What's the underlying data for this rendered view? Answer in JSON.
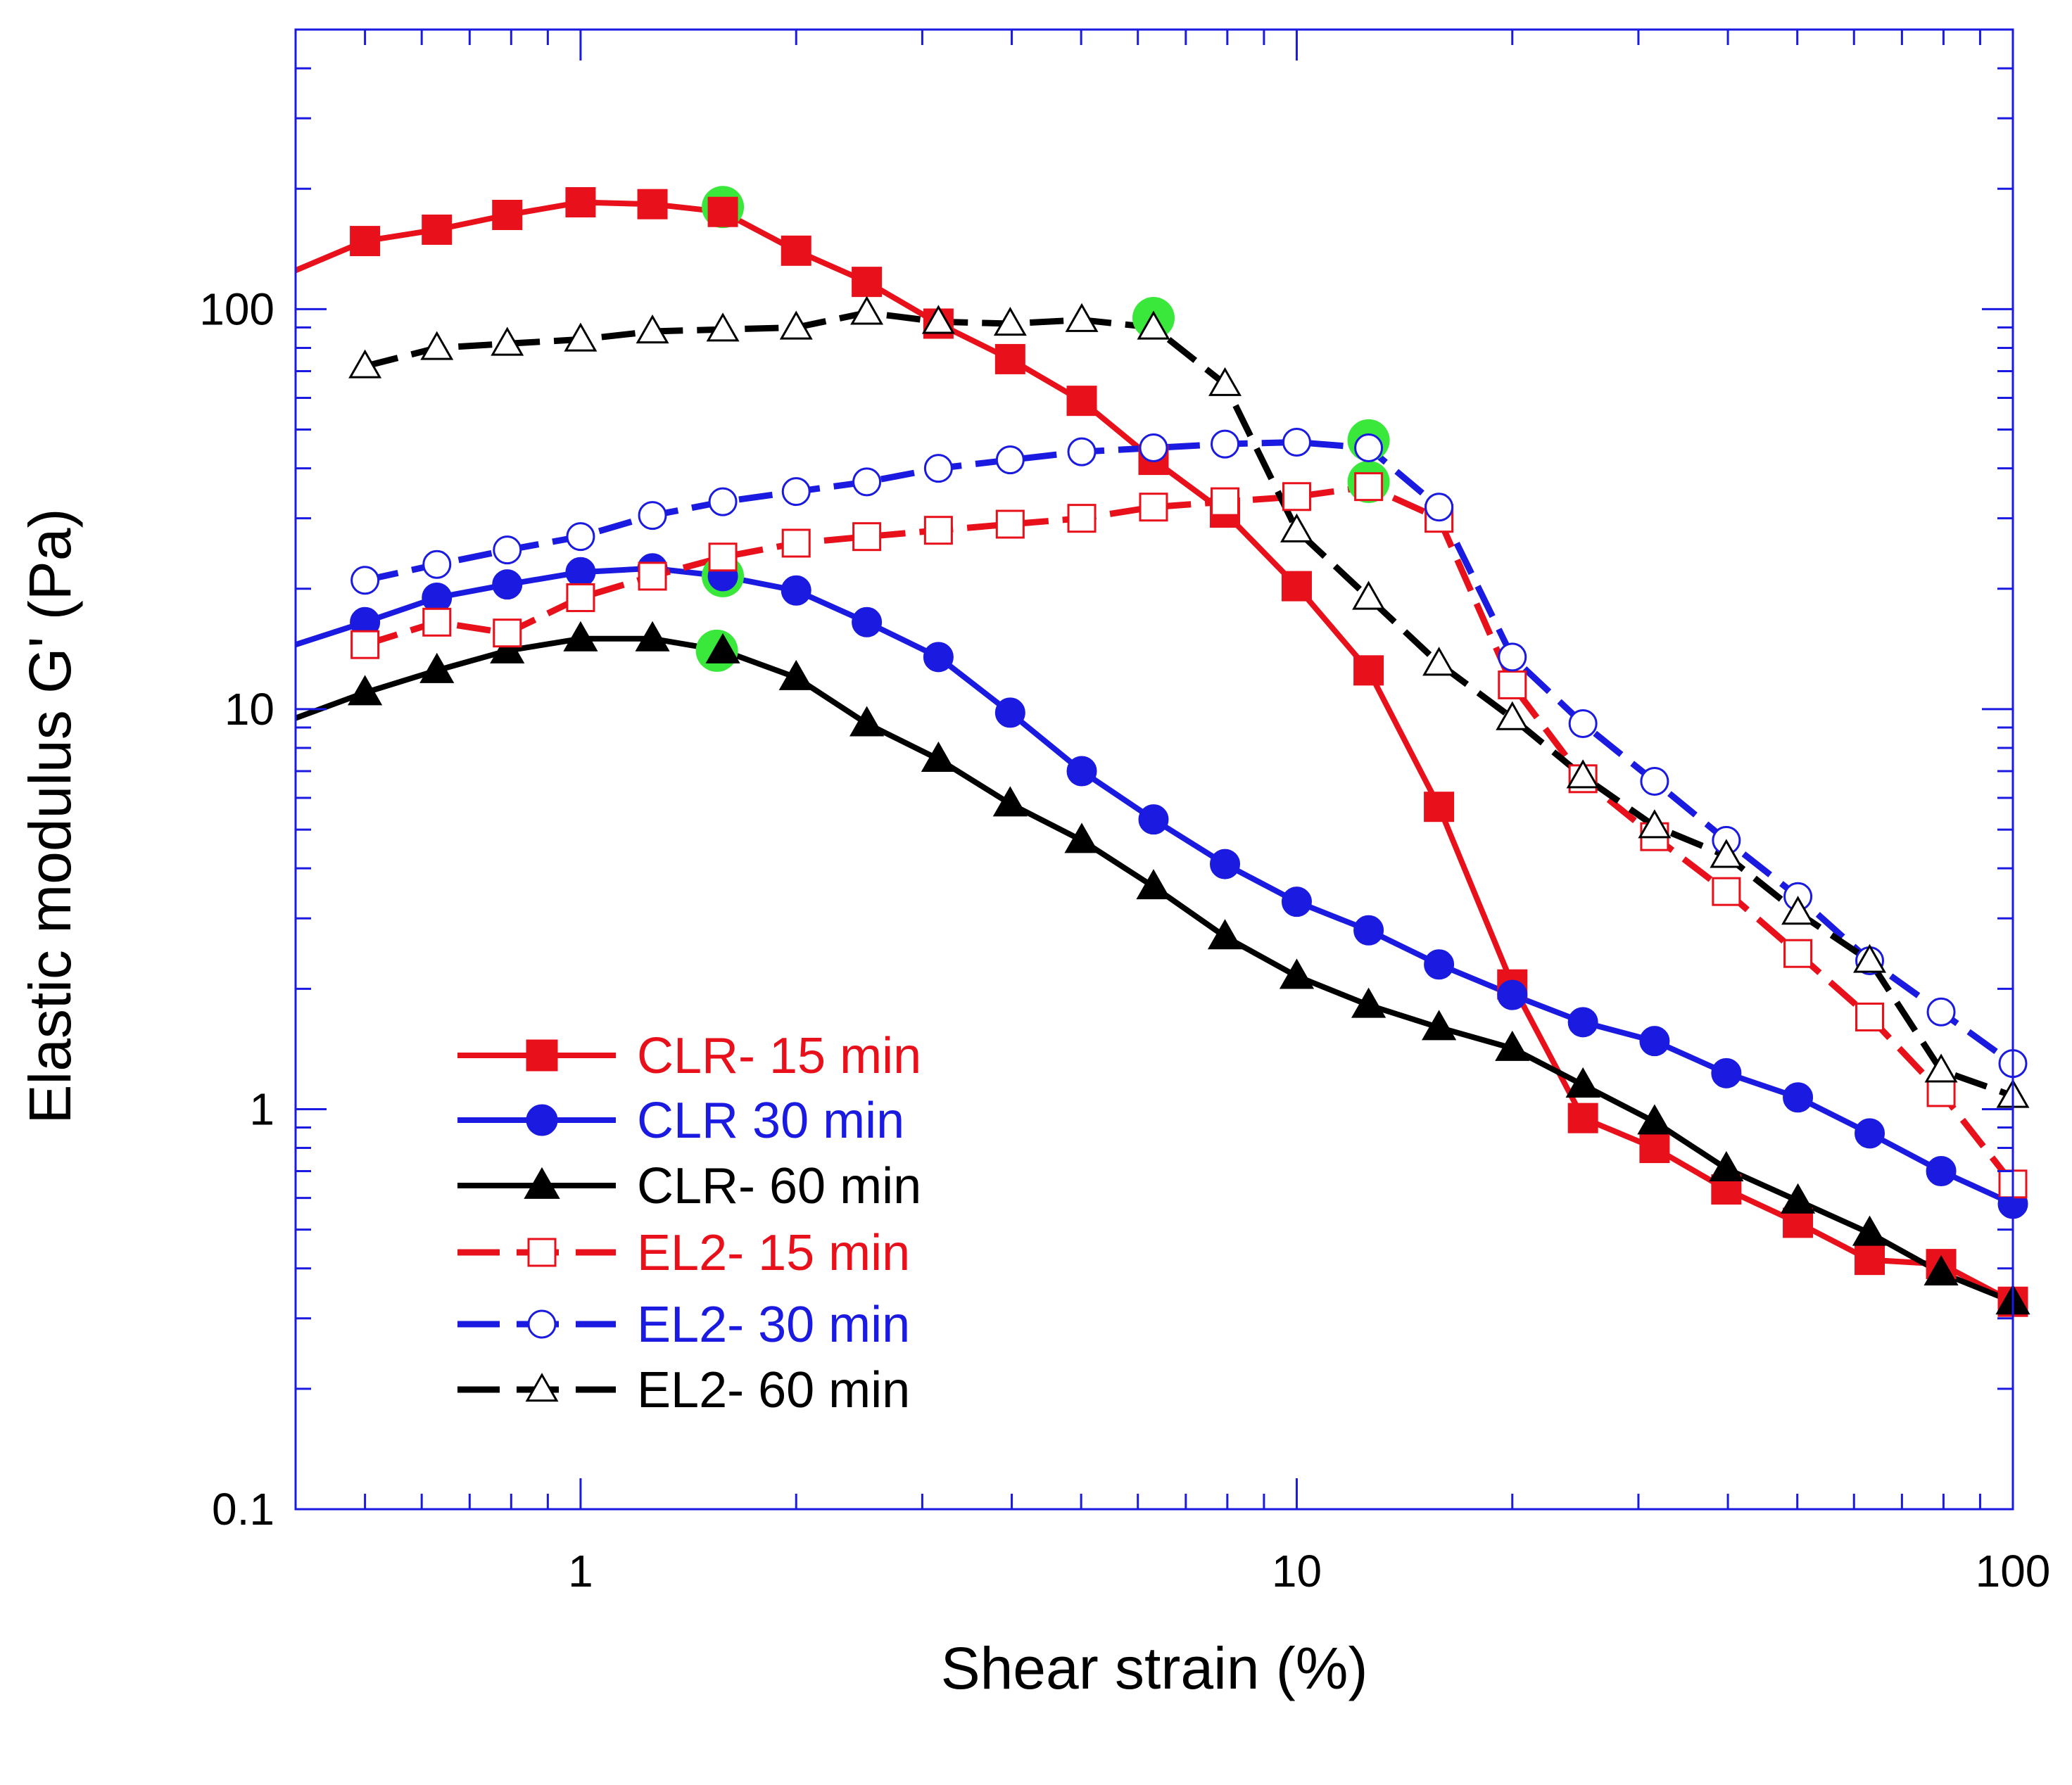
{
  "chart_data": {
    "type": "line",
    "xscale": "log",
    "yscale": "log",
    "xlim": [
      0.4,
      100
    ],
    "ylim": [
      0.1,
      500
    ],
    "xlabel": "Shear strain (%)",
    "ylabel": "Elastic modulus G' (Pa)",
    "x_ticks": [
      {
        "value": 1,
        "label": "1"
      },
      {
        "value": 10,
        "label": "10"
      },
      {
        "value": 100,
        "label": "100"
      }
    ],
    "y_ticks": [
      {
        "value": 0.1,
        "label": "0.1"
      },
      {
        "value": 1,
        "label": "1"
      },
      {
        "value": 10,
        "label": "10"
      },
      {
        "value": 100,
        "label": "100"
      }
    ],
    "series": [
      {
        "name": "CLR- 15 min",
        "color": "#e8101a",
        "marker": "square",
        "filled": true,
        "dashed": false,
        "points": [
          [
            0.4,
            125
          ],
          [
            0.5,
            148
          ],
          [
            0.63,
            158
          ],
          [
            0.79,
            172
          ],
          [
            1.0,
            185
          ],
          [
            1.26,
            183
          ],
          [
            1.58,
            175
          ],
          [
            2.0,
            140
          ],
          [
            2.51,
            117
          ],
          [
            3.16,
            92
          ],
          [
            3.98,
            75
          ],
          [
            5.01,
            59
          ],
          [
            6.31,
            42
          ],
          [
            7.94,
            31
          ],
          [
            10.0,
            20.3
          ],
          [
            12.6,
            12.5
          ],
          [
            15.8,
            5.7
          ],
          [
            20.0,
            2.05
          ],
          [
            25.1,
            0.95
          ],
          [
            31.6,
            0.8
          ],
          [
            39.8,
            0.63
          ],
          [
            50.1,
            0.52
          ],
          [
            63.1,
            0.42
          ],
          [
            79.4,
            0.41
          ],
          [
            100,
            0.33
          ]
        ]
      },
      {
        "name": "CLR 30 min",
        "color": "#1a1ae0",
        "marker": "circle",
        "filled": true,
        "dashed": false,
        "points": [
          [
            0.4,
            14.5
          ],
          [
            0.5,
            16.5
          ],
          [
            0.63,
            19
          ],
          [
            0.79,
            20.5
          ],
          [
            1.0,
            22
          ],
          [
            1.26,
            22.5
          ],
          [
            1.58,
            21.5
          ],
          [
            2.0,
            19.8
          ],
          [
            2.51,
            16.5
          ],
          [
            3.16,
            13.5
          ],
          [
            3.98,
            9.8
          ],
          [
            5.01,
            7.0
          ],
          [
            6.31,
            5.3
          ],
          [
            7.94,
            4.1
          ],
          [
            10.0,
            3.3
          ],
          [
            12.6,
            2.8
          ],
          [
            15.8,
            2.3
          ],
          [
            20.0,
            1.93
          ],
          [
            25.1,
            1.65
          ],
          [
            31.6,
            1.48
          ],
          [
            39.8,
            1.23
          ],
          [
            50.1,
            1.07
          ],
          [
            63.1,
            0.87
          ],
          [
            79.4,
            0.7
          ],
          [
            100,
            0.58
          ]
        ]
      },
      {
        "name": "CLR- 60 min",
        "color": "#000000",
        "marker": "triangle",
        "filled": true,
        "dashed": false,
        "points": [
          [
            0.4,
            9.5
          ],
          [
            0.5,
            11
          ],
          [
            0.63,
            12.5
          ],
          [
            0.79,
            14
          ],
          [
            1.0,
            15
          ],
          [
            1.26,
            15
          ],
          [
            1.58,
            14
          ],
          [
            2.0,
            12
          ],
          [
            2.51,
            9.2
          ],
          [
            3.16,
            7.5
          ],
          [
            3.98,
            5.8
          ],
          [
            5.01,
            4.7
          ],
          [
            6.31,
            3.6
          ],
          [
            7.94,
            2.7
          ],
          [
            10.0,
            2.15
          ],
          [
            12.6,
            1.82
          ],
          [
            15.8,
            1.6
          ],
          [
            20.0,
            1.42
          ],
          [
            25.1,
            1.15
          ],
          [
            31.6,
            0.93
          ],
          [
            39.8,
            0.71
          ],
          [
            50.1,
            0.59
          ],
          [
            63.1,
            0.49
          ],
          [
            79.4,
            0.39
          ],
          [
            100,
            0.33
          ]
        ]
      },
      {
        "name": "EL2- 15 min",
        "color": "#e8101a",
        "marker": "square",
        "filled": false,
        "dashed": true,
        "points": [
          [
            0.5,
            14.5
          ],
          [
            0.63,
            16.5
          ],
          [
            0.79,
            15.5
          ],
          [
            1.0,
            19
          ],
          [
            1.26,
            21.5
          ],
          [
            1.58,
            24
          ],
          [
            2.0,
            26
          ],
          [
            2.51,
            27
          ],
          [
            3.16,
            28
          ],
          [
            3.98,
            29
          ],
          [
            5.01,
            30
          ],
          [
            6.31,
            32
          ],
          [
            7.94,
            33
          ],
          [
            10.0,
            34
          ],
          [
            12.6,
            36
          ],
          [
            15.8,
            30
          ],
          [
            20.0,
            11.5
          ],
          [
            25.1,
            6.7
          ],
          [
            31.6,
            4.8
          ],
          [
            39.8,
            3.5
          ],
          [
            50.1,
            2.45
          ],
          [
            63.1,
            1.7
          ],
          [
            79.4,
            1.1
          ],
          [
            100,
            0.65
          ]
        ]
      },
      {
        "name": "EL2- 30 min",
        "color": "#1a1ae0",
        "marker": "circle",
        "filled": false,
        "dashed": true,
        "points": [
          [
            0.5,
            21
          ],
          [
            0.63,
            23
          ],
          [
            0.79,
            25
          ],
          [
            1.0,
            27
          ],
          [
            1.26,
            30.5
          ],
          [
            1.58,
            33
          ],
          [
            2.0,
            35
          ],
          [
            2.51,
            37
          ],
          [
            3.16,
            40
          ],
          [
            3.98,
            42
          ],
          [
            5.01,
            44
          ],
          [
            6.31,
            45
          ],
          [
            7.94,
            46
          ],
          [
            10.0,
            46.5
          ],
          [
            12.6,
            45
          ],
          [
            15.8,
            32
          ],
          [
            20.0,
            13.5
          ],
          [
            25.1,
            9.2
          ],
          [
            31.6,
            6.6
          ],
          [
            39.8,
            4.7
          ],
          [
            50.1,
            3.4
          ],
          [
            63.1,
            2.35
          ],
          [
            79.4,
            1.75
          ],
          [
            100,
            1.3
          ]
        ]
      },
      {
        "name": "EL2- 60 min",
        "color": "#000000",
        "marker": "triangle",
        "filled": false,
        "dashed": true,
        "points": [
          [
            0.5,
            72
          ],
          [
            0.63,
            80
          ],
          [
            0.79,
            82
          ],
          [
            1.0,
            84
          ],
          [
            1.26,
            88
          ],
          [
            1.58,
            89
          ],
          [
            2.0,
            90
          ],
          [
            2.51,
            98
          ],
          [
            3.16,
            93
          ],
          [
            3.98,
            92
          ],
          [
            5.01,
            94
          ],
          [
            6.31,
            90
          ],
          [
            7.94,
            65
          ],
          [
            10.0,
            28
          ],
          [
            12.6,
            19
          ],
          [
            15.8,
            13
          ],
          [
            20.0,
            9.5
          ],
          [
            25.1,
            6.8
          ],
          [
            31.6,
            5.1
          ],
          [
            39.8,
            4.3
          ],
          [
            50.1,
            3.1
          ],
          [
            63.1,
            2.35
          ],
          [
            79.4,
            1.25
          ],
          [
            100,
            1.08
          ]
        ]
      }
    ],
    "highlight_points": {
      "color": "#39e83a",
      "points": [
        [
          1.58,
          180
        ],
        [
          6.31,
          95
        ],
        [
          12.6,
          47
        ],
        [
          12.6,
          37
        ],
        [
          1.58,
          21.5
        ],
        [
          1.55,
          14
        ]
      ]
    }
  }
}
